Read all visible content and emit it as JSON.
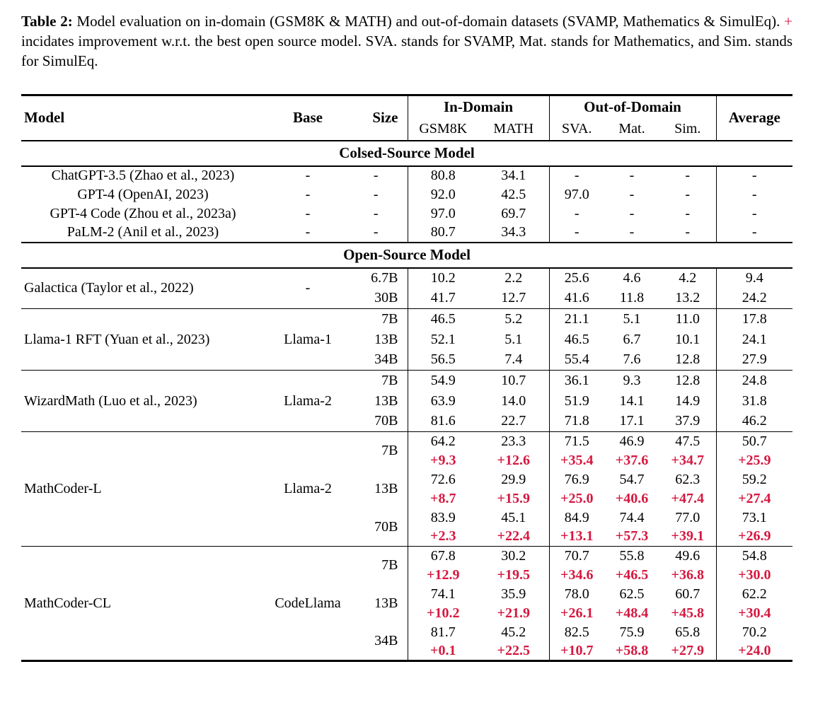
{
  "colors": {
    "delta_red": "#d6173f",
    "ink": "#000000"
  },
  "caption": {
    "label": "Table 2:",
    "text_before_plus": "Model evaluation on in-domain (GSM8K & MATH) and out-of-domain datasets (SVAMP, Mathematics & SimulEq).",
    "plus": "+",
    "text_after_plus": "incidates improvement w.r.t. the best open source model. SVA. stands for SVAMP, Mat. stands for Mathematics, and Sim. stands for SimulEq."
  },
  "table": {
    "header": {
      "model": "Model",
      "base": "Base",
      "size": "Size",
      "in_domain": "In-Domain",
      "out_of_domain": "Out-of-Domain",
      "average": "Average",
      "sub": [
        "GSM8K",
        "MATH",
        "SVA.",
        "Mat.",
        "Sim."
      ]
    },
    "blocks": [
      {
        "type": "section",
        "title": "Colsed-Source Model"
      },
      {
        "type": "plain_rows",
        "rows": [
          {
            "model": "ChatGPT-3.5 (Zhao et al., 2023)",
            "base": "-",
            "size": "-",
            "values": [
              "80.8",
              "34.1",
              "-",
              "-",
              "-",
              "-"
            ]
          },
          {
            "model": "GPT-4 (OpenAI, 2023)",
            "base": "-",
            "size": "-",
            "values": [
              "92.0",
              "42.5",
              "97.0",
              "-",
              "-",
              "-"
            ]
          },
          {
            "model": "GPT-4 Code (Zhou et al., 2023a)",
            "base": "-",
            "size": "-",
            "values": [
              "97.0",
              "69.7",
              "-",
              "-",
              "-",
              "-"
            ]
          },
          {
            "model": "PaLM-2 (Anil et al., 2023)",
            "base": "-",
            "size": "-",
            "values": [
              "80.7",
              "34.3",
              "-",
              "-",
              "-",
              "-"
            ]
          }
        ]
      },
      {
        "type": "section",
        "title": "Open-Source Model"
      },
      {
        "type": "group",
        "tall": true,
        "model": "Galactica (Taylor et al., 2022)",
        "base": "-",
        "rows": [
          {
            "size": "6.7B",
            "values": [
              "10.2",
              "2.2",
              "25.6",
              "4.6",
              "4.2",
              "9.4"
            ]
          },
          {
            "size": "30B",
            "values": [
              "41.7",
              "12.7",
              "41.6",
              "11.8",
              "13.2",
              "24.2"
            ]
          }
        ]
      },
      {
        "type": "group",
        "tall": true,
        "model": "Llama-1 RFT (Yuan et al., 2023)",
        "base": "Llama-1",
        "rows": [
          {
            "size": "7B",
            "values": [
              "46.5",
              "5.2",
              "21.1",
              "5.1",
              "11.0",
              "17.8"
            ]
          },
          {
            "size": "13B",
            "values": [
              "52.1",
              "5.1",
              "46.5",
              "6.7",
              "10.1",
              "24.1"
            ]
          },
          {
            "size": "34B",
            "values": [
              "56.5",
              "7.4",
              "55.4",
              "7.6",
              "12.8",
              "27.9"
            ]
          }
        ]
      },
      {
        "type": "group",
        "tall": true,
        "model": "WizardMath (Luo et al., 2023)",
        "base": "Llama-2",
        "rows": [
          {
            "size": "7B",
            "values": [
              "54.9",
              "10.7",
              "36.1",
              "9.3",
              "12.8",
              "24.8"
            ]
          },
          {
            "size": "13B",
            "values": [
              "63.9",
              "14.0",
              "51.9",
              "14.1",
              "14.9",
              "31.8"
            ]
          },
          {
            "size": "70B",
            "values": [
              "81.6",
              "22.7",
              "71.8",
              "17.1",
              "37.9",
              "46.2"
            ]
          }
        ]
      },
      {
        "type": "group",
        "tall": false,
        "model": "MathCoder-L",
        "base": "Llama-2",
        "rows": [
          {
            "size": "7B",
            "values": [
              "64.2",
              "23.3",
              "71.5",
              "46.9",
              "47.5",
              "50.7"
            ],
            "deltas": [
              "+9.3",
              "+12.6",
              "+35.4",
              "+37.6",
              "+34.7",
              "+25.9"
            ]
          },
          {
            "size": "13B",
            "values": [
              "72.6",
              "29.9",
              "76.9",
              "54.7",
              "62.3",
              "59.2"
            ],
            "deltas": [
              "+8.7",
              "+15.9",
              "+25.0",
              "+40.6",
              "+47.4",
              "+27.4"
            ]
          },
          {
            "size": "70B",
            "values": [
              "83.9",
              "45.1",
              "84.9",
              "74.4",
              "77.0",
              "73.1"
            ],
            "deltas": [
              "+2.3",
              "+22.4",
              "+13.1",
              "+57.3",
              "+39.1",
              "+26.9"
            ]
          }
        ]
      },
      {
        "type": "group",
        "tall": false,
        "model": "MathCoder-CL",
        "base": "CodeLlama",
        "rows": [
          {
            "size": "7B",
            "values": [
              "67.8",
              "30.2",
              "70.7",
              "55.8",
              "49.6",
              "54.8"
            ],
            "deltas": [
              "+12.9",
              "+19.5",
              "+34.6",
              "+46.5",
              "+36.8",
              "+30.0"
            ]
          },
          {
            "size": "13B",
            "values": [
              "74.1",
              "35.9",
              "78.0",
              "62.5",
              "60.7",
              "62.2"
            ],
            "deltas": [
              "+10.2",
              "+21.9",
              "+26.1",
              "+48.4",
              "+45.8",
              "+30.4"
            ]
          },
          {
            "size": "34B",
            "values": [
              "81.7",
              "45.2",
              "82.5",
              "75.9",
              "65.8",
              "70.2"
            ],
            "deltas": [
              "+0.1",
              "+22.5",
              "+10.7",
              "+58.8",
              "+27.9",
              "+24.0"
            ]
          }
        ]
      }
    ]
  }
}
